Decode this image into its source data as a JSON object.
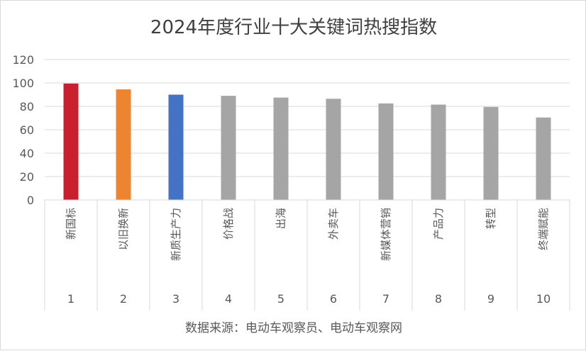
{
  "chart_data": {
    "type": "bar",
    "title": "2024年度行业十大关键词热搜指数",
    "categories": [
      "新国标",
      "以旧换新",
      "新质生产力",
      "价格战",
      "出海",
      "外卖车",
      "新媒体营销",
      "产品力",
      "转型",
      "终端赋能"
    ],
    "ranks": [
      "1",
      "2",
      "3",
      "4",
      "5",
      "6",
      "7",
      "8",
      "9",
      "10"
    ],
    "values": [
      99.5,
      94.5,
      90,
      89,
      87.5,
      86.5,
      82.5,
      81.5,
      79.5,
      70.5
    ],
    "bar_colors": [
      "#c8202f",
      "#ed8430",
      "#4472c4",
      "#a5a5a5",
      "#a5a5a5",
      "#a5a5a5",
      "#a5a5a5",
      "#a5a5a5",
      "#a5a5a5",
      "#a5a5a5"
    ],
    "ylim": [
      0,
      120
    ],
    "yticks": [
      "0",
      "20",
      "40",
      "60",
      "80",
      "100",
      "120"
    ],
    "grid": true,
    "xlabel": "",
    "ylabel": "",
    "source": "数据来源：电动车观察员、电动车观察网"
  }
}
